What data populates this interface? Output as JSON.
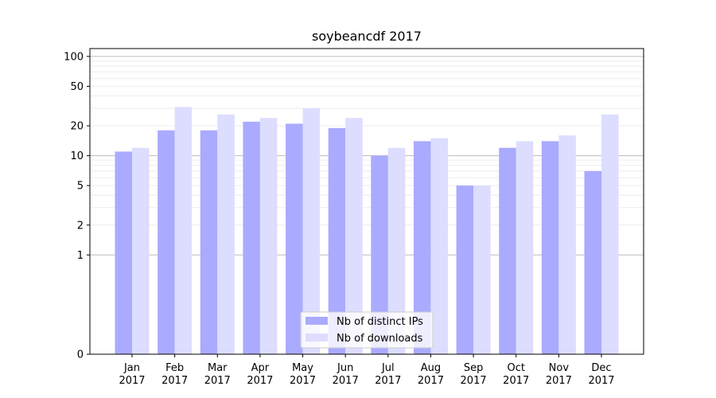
{
  "chart_data": {
    "type": "bar",
    "title": "soybeancdf 2017",
    "xlabel": "",
    "ylabel": "",
    "y_scale": "symlog",
    "ylim": [
      0,
      120
    ],
    "y_ticks": [
      0,
      1,
      2,
      5,
      10,
      20,
      50,
      100
    ],
    "y_tick_labels": [
      "0",
      "1",
      "2",
      "5",
      "10",
      "20",
      "50",
      "100"
    ],
    "categories": [
      "Jan",
      "Feb",
      "Mar",
      "Apr",
      "May",
      "Jun",
      "Jul",
      "Aug",
      "Sep",
      "Oct",
      "Nov",
      "Dec"
    ],
    "category_sublabels": [
      "2017",
      "2017",
      "2017",
      "2017",
      "2017",
      "2017",
      "2017",
      "2017",
      "2017",
      "2017",
      "2017",
      "2017"
    ],
    "series": [
      {
        "name": "Nb of distinct IPs",
        "color": "#aaaaff",
        "values": [
          11,
          18,
          18,
          22,
          21,
          19,
          10,
          14,
          5,
          12,
          14,
          7
        ]
      },
      {
        "name": "Nb of downloads",
        "color": "#ddddff",
        "values": [
          12,
          31,
          26,
          24,
          30,
          24,
          12,
          15,
          5,
          14,
          16,
          26
        ]
      }
    ],
    "grid": true,
    "legend_position": "bottom-center"
  }
}
